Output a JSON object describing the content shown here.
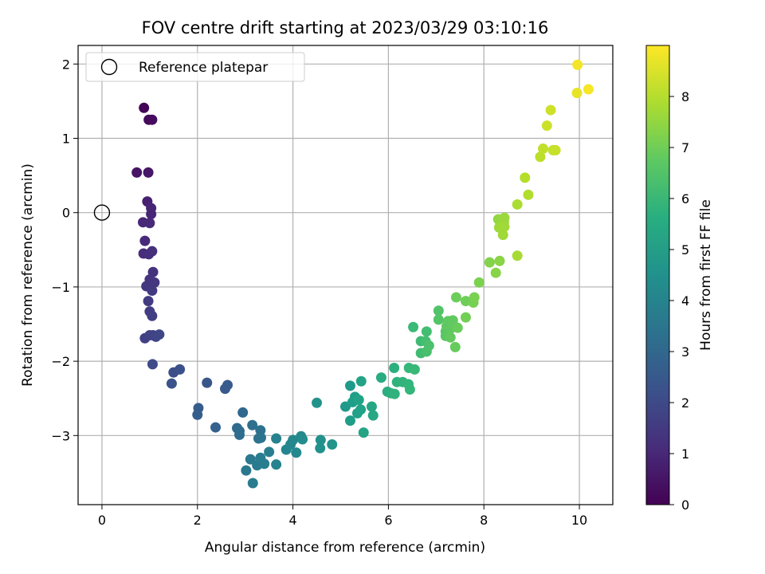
{
  "chart_data": {
    "type": "scatter",
    "title": "FOV centre drift starting at 2023/03/29 03:10:16",
    "xlabel": "Angular distance from reference (arcmin)",
    "ylabel": "Rotation from reference (arcmin)",
    "xlim": [
      -0.5,
      10.7
    ],
    "ylim": [
      -3.93,
      2.25
    ],
    "xticks": [
      0,
      2,
      4,
      6,
      8,
      10
    ],
    "yticks": [
      -3,
      -2,
      -1,
      0,
      1,
      2
    ],
    "grid": true,
    "legend": {
      "position": "top-left",
      "entries": [
        {
          "label": "Reference platepar",
          "marker": "open-circle",
          "color": "#000000"
        }
      ]
    },
    "reference_point": {
      "x": 0,
      "y": 0
    },
    "colorbar": {
      "label": "Hours from first FF file",
      "colormap": "viridis",
      "range": [
        0,
        9.0
      ],
      "ticks": [
        0,
        1,
        2,
        3,
        4,
        5,
        6,
        7,
        8
      ]
    },
    "points": [
      {
        "x": 0.88,
        "y": 1.41,
        "t": 0.05
      },
      {
        "x": 0.98,
        "y": 1.25,
        "t": 0.2
      },
      {
        "x": 1.05,
        "y": 1.25,
        "t": 0.25
      },
      {
        "x": 0.73,
        "y": 0.54,
        "t": 0.5
      },
      {
        "x": 0.97,
        "y": 0.54,
        "t": 0.55
      },
      {
        "x": 0.95,
        "y": 0.15,
        "t": 0.8
      },
      {
        "x": 1.03,
        "y": 0.06,
        "t": 0.9
      },
      {
        "x": 1.03,
        "y": -0.02,
        "t": 0.95
      },
      {
        "x": 0.86,
        "y": -0.13,
        "t": 1.0
      },
      {
        "x": 1.0,
        "y": -0.14,
        "t": 1.05
      },
      {
        "x": 0.9,
        "y": -0.38,
        "t": 1.1
      },
      {
        "x": 0.87,
        "y": -0.55,
        "t": 1.15
      },
      {
        "x": 1.05,
        "y": -0.52,
        "t": 1.2
      },
      {
        "x": 0.98,
        "y": -0.56,
        "t": 1.22
      },
      {
        "x": 1.07,
        "y": -0.8,
        "t": 1.3
      },
      {
        "x": 1.0,
        "y": -0.9,
        "t": 1.35
      },
      {
        "x": 1.1,
        "y": -0.94,
        "t": 1.4
      },
      {
        "x": 0.93,
        "y": -0.99,
        "t": 1.45
      },
      {
        "x": 1.05,
        "y": -1.05,
        "t": 1.5
      },
      {
        "x": 0.97,
        "y": -1.19,
        "t": 1.55
      },
      {
        "x": 1.0,
        "y": -1.33,
        "t": 1.6
      },
      {
        "x": 1.05,
        "y": -1.39,
        "t": 1.65
      },
      {
        "x": 0.9,
        "y": -1.69,
        "t": 1.7
      },
      {
        "x": 1.0,
        "y": -1.65,
        "t": 1.75
      },
      {
        "x": 1.07,
        "y": -1.65,
        "t": 1.8
      },
      {
        "x": 1.13,
        "y": -1.67,
        "t": 1.85
      },
      {
        "x": 1.2,
        "y": -1.64,
        "t": 1.9
      },
      {
        "x": 1.06,
        "y": -2.04,
        "t": 2.0
      },
      {
        "x": 1.5,
        "y": -2.15,
        "t": 2.1
      },
      {
        "x": 1.63,
        "y": -2.11,
        "t": 2.2
      },
      {
        "x": 1.46,
        "y": -2.3,
        "t": 2.3
      },
      {
        "x": 2.2,
        "y": -2.29,
        "t": 2.4
      },
      {
        "x": 2.58,
        "y": -2.37,
        "t": 2.5
      },
      {
        "x": 2.63,
        "y": -2.32,
        "t": 2.55
      },
      {
        "x": 2.02,
        "y": -2.63,
        "t": 2.6
      },
      {
        "x": 2.0,
        "y": -2.72,
        "t": 2.65
      },
      {
        "x": 2.38,
        "y": -2.89,
        "t": 2.8
      },
      {
        "x": 2.95,
        "y": -2.69,
        "t": 3.0
      },
      {
        "x": 2.83,
        "y": -2.9,
        "t": 3.1
      },
      {
        "x": 2.88,
        "y": -2.94,
        "t": 3.15
      },
      {
        "x": 2.88,
        "y": -2.99,
        "t": 3.2
      },
      {
        "x": 3.15,
        "y": -2.86,
        "t": 3.3
      },
      {
        "x": 3.32,
        "y": -2.93,
        "t": 3.35
      },
      {
        "x": 3.28,
        "y": -3.04,
        "t": 3.4
      },
      {
        "x": 3.33,
        "y": -3.03,
        "t": 3.45
      },
      {
        "x": 3.02,
        "y": -3.47,
        "t": 3.6
      },
      {
        "x": 3.11,
        "y": -3.32,
        "t": 3.65
      },
      {
        "x": 3.25,
        "y": -3.4,
        "t": 3.7
      },
      {
        "x": 3.16,
        "y": -3.64,
        "t": 3.75
      },
      {
        "x": 3.32,
        "y": -3.3,
        "t": 3.8
      },
      {
        "x": 3.4,
        "y": -3.38,
        "t": 3.85
      },
      {
        "x": 3.5,
        "y": -3.22,
        "t": 3.9
      },
      {
        "x": 3.65,
        "y": -3.04,
        "t": 3.95
      },
      {
        "x": 3.65,
        "y": -3.39,
        "t": 4.0
      },
      {
        "x": 3.86,
        "y": -3.19,
        "t": 4.1
      },
      {
        "x": 3.95,
        "y": -3.12,
        "t": 4.15
      },
      {
        "x": 4.0,
        "y": -3.06,
        "t": 4.2
      },
      {
        "x": 4.07,
        "y": -3.23,
        "t": 4.25
      },
      {
        "x": 4.17,
        "y": -3.01,
        "t": 4.3
      },
      {
        "x": 4.2,
        "y": -3.05,
        "t": 4.35
      },
      {
        "x": 4.5,
        "y": -2.56,
        "t": 4.6
      },
      {
        "x": 4.58,
        "y": -3.06,
        "t": 4.5
      },
      {
        "x": 4.57,
        "y": -3.17,
        "t": 4.55
      },
      {
        "x": 4.82,
        "y": -3.12,
        "t": 4.65
      },
      {
        "x": 5.1,
        "y": -2.61,
        "t": 4.8
      },
      {
        "x": 5.2,
        "y": -2.33,
        "t": 4.9
      },
      {
        "x": 5.2,
        "y": -2.8,
        "t": 4.95
      },
      {
        "x": 5.25,
        "y": -2.55,
        "t": 5.0
      },
      {
        "x": 5.3,
        "y": -2.48,
        "t": 5.05
      },
      {
        "x": 5.35,
        "y": -2.7,
        "t": 5.1
      },
      {
        "x": 5.42,
        "y": -2.65,
        "t": 5.15
      },
      {
        "x": 5.38,
        "y": -2.52,
        "t": 5.18
      },
      {
        "x": 5.43,
        "y": -2.27,
        "t": 5.2
      },
      {
        "x": 5.48,
        "y": -2.96,
        "t": 5.25
      },
      {
        "x": 5.65,
        "y": -2.61,
        "t": 5.3
      },
      {
        "x": 5.68,
        "y": -2.73,
        "t": 5.35
      },
      {
        "x": 5.85,
        "y": -2.22,
        "t": 5.5
      },
      {
        "x": 5.98,
        "y": -2.41,
        "t": 5.6
      },
      {
        "x": 6.05,
        "y": -2.43,
        "t": 5.65
      },
      {
        "x": 6.12,
        "y": -2.09,
        "t": 5.7
      },
      {
        "x": 6.13,
        "y": -2.44,
        "t": 5.75
      },
      {
        "x": 6.18,
        "y": -2.28,
        "t": 5.8
      },
      {
        "x": 6.3,
        "y": -2.28,
        "t": 5.85
      },
      {
        "x": 6.42,
        "y": -2.31,
        "t": 5.9
      },
      {
        "x": 6.45,
        "y": -2.38,
        "t": 5.95
      },
      {
        "x": 6.43,
        "y": -2.09,
        "t": 6.0
      },
      {
        "x": 6.55,
        "y": -2.11,
        "t": 6.05
      },
      {
        "x": 6.52,
        "y": -1.54,
        "t": 6.1
      },
      {
        "x": 6.68,
        "y": -1.73,
        "t": 6.15
      },
      {
        "x": 6.68,
        "y": -1.89,
        "t": 6.2
      },
      {
        "x": 6.8,
        "y": -1.6,
        "t": 6.25
      },
      {
        "x": 6.78,
        "y": -1.73,
        "t": 6.3
      },
      {
        "x": 6.8,
        "y": -1.87,
        "t": 6.35
      },
      {
        "x": 6.85,
        "y": -1.79,
        "t": 6.4
      },
      {
        "x": 7.05,
        "y": -1.32,
        "t": 6.5
      },
      {
        "x": 7.05,
        "y": -1.44,
        "t": 6.55
      },
      {
        "x": 7.2,
        "y": -1.6,
        "t": 6.6
      },
      {
        "x": 7.2,
        "y": -1.66,
        "t": 6.65
      },
      {
        "x": 7.22,
        "y": -1.53,
        "t": 6.7
      },
      {
        "x": 7.25,
        "y": -1.46,
        "t": 6.72
      },
      {
        "x": 7.3,
        "y": -1.56,
        "t": 6.75
      },
      {
        "x": 7.35,
        "y": -1.45,
        "t": 6.78
      },
      {
        "x": 7.3,
        "y": -1.68,
        "t": 6.8
      },
      {
        "x": 7.4,
        "y": -1.81,
        "t": 6.85
      },
      {
        "x": 7.45,
        "y": -1.55,
        "t": 6.9
      },
      {
        "x": 7.42,
        "y": -1.14,
        "t": 6.95
      },
      {
        "x": 7.62,
        "y": -1.19,
        "t": 7.0
      },
      {
        "x": 7.62,
        "y": -1.41,
        "t": 7.05
      },
      {
        "x": 7.78,
        "y": -1.21,
        "t": 7.1
      },
      {
        "x": 7.8,
        "y": -1.14,
        "t": 7.15
      },
      {
        "x": 7.9,
        "y": -0.94,
        "t": 7.2
      },
      {
        "x": 8.12,
        "y": -0.67,
        "t": 7.3
      },
      {
        "x": 8.25,
        "y": -0.81,
        "t": 7.35
      },
      {
        "x": 8.33,
        "y": -0.65,
        "t": 7.4
      },
      {
        "x": 8.3,
        "y": -0.09,
        "t": 7.5
      },
      {
        "x": 8.35,
        "y": -0.18,
        "t": 7.55
      },
      {
        "x": 8.42,
        "y": -0.13,
        "t": 7.6
      },
      {
        "x": 8.43,
        "y": -0.07,
        "t": 7.65
      },
      {
        "x": 8.32,
        "y": -0.2,
        "t": 7.68
      },
      {
        "x": 8.4,
        "y": -0.3,
        "t": 7.7
      },
      {
        "x": 8.43,
        "y": -0.19,
        "t": 7.72
      },
      {
        "x": 8.7,
        "y": -0.58,
        "t": 7.8
      },
      {
        "x": 8.7,
        "y": 0.11,
        "t": 7.85
      },
      {
        "x": 8.93,
        "y": 0.24,
        "t": 7.95
      },
      {
        "x": 8.86,
        "y": 0.47,
        "t": 8.0
      },
      {
        "x": 9.18,
        "y": 0.75,
        "t": 8.1
      },
      {
        "x": 9.24,
        "y": 0.86,
        "t": 8.15
      },
      {
        "x": 9.45,
        "y": 0.84,
        "t": 8.2
      },
      {
        "x": 9.5,
        "y": 0.84,
        "t": 8.25
      },
      {
        "x": 9.32,
        "y": 1.17,
        "t": 8.3
      },
      {
        "x": 9.4,
        "y": 1.38,
        "t": 8.35
      },
      {
        "x": 9.95,
        "y": 1.61,
        "t": 8.7
      },
      {
        "x": 9.96,
        "y": 1.99,
        "t": 8.85
      },
      {
        "x": 10.19,
        "y": 1.66,
        "t": 8.9
      }
    ]
  }
}
